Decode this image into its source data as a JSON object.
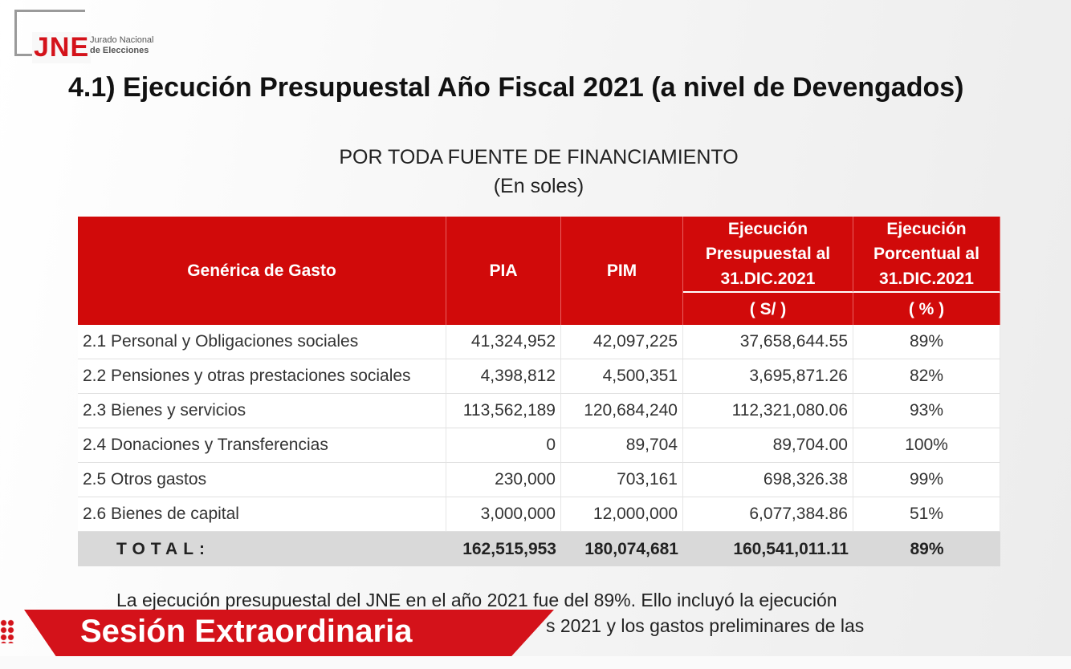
{
  "logo": {
    "mark": "JNE",
    "line1": "Jurado Nacional",
    "line2": "de Elecciones"
  },
  "title": "4.1) Ejecución Presupuestal Año Fiscal 2021 (a nivel de Devengados)",
  "subtitle": [
    "POR TODA FUENTE DE FINANCIAMIENTO",
    "(En soles)"
  ],
  "table": {
    "header": [
      "Genérica de Gasto",
      "PIA",
      "PIM",
      "Ejecución Presupuestal al 31.DIC.2021",
      "Ejecución Porcentual al 31.DIC.2021"
    ],
    "units": [
      "( S/ )",
      "( % )"
    ],
    "rows": [
      [
        "2.1 Personal y Obligaciones sociales",
        "41,324,952",
        "42,097,225",
        "37,658,644.55",
        "89%"
      ],
      [
        "2.2 Pensiones y otras prestaciones sociales",
        "4,398,812",
        "4,500,351",
        "3,695,871.26",
        "82%"
      ],
      [
        "2.3 Bienes y servicios",
        "113,562,189",
        "120,684,240",
        "112,321,080.06",
        "93%"
      ],
      [
        "2.4 Donaciones y Transferencias",
        "0",
        "89,704",
        "89,704.00",
        "100%"
      ],
      [
        "2.5 Otros gastos",
        "230,000",
        "703,161",
        "698,326.38",
        "99%"
      ],
      [
        "2.6 Bienes de capital",
        "3,000,000",
        "12,000,000",
        "6,077,384.86",
        "51%"
      ]
    ],
    "total": [
      "TOTAL:",
      "162,515,953",
      "180,074,681",
      "160,541,011.11",
      "89%"
    ]
  },
  "paragraph": [
    "La ejecución presupuestal del JNE en el año 2021 fue del 89%. Ello incluyó la ejecución",
    "s 2021 y los gastos preliminares de las"
  ],
  "banner": "Sesión Extraordinaria"
}
